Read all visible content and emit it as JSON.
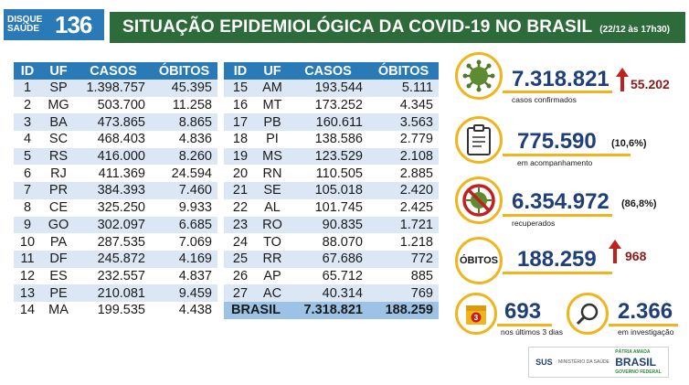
{
  "header": {
    "logo_top": "DISQUE",
    "logo_bottom": "SAÚDE",
    "logo_number": "136",
    "title": "SITUAÇÃO EPIDEMIOLÓGICA DA COVID-19 NO BRASIL",
    "date": "(22/12 às 17h30)"
  },
  "table": {
    "columns": [
      "ID",
      "UF",
      "CASOS",
      "ÓBITOS"
    ],
    "left": [
      [
        "1",
        "SP",
        "1.398.757",
        "45.395"
      ],
      [
        "2",
        "MG",
        "503.700",
        "11.258"
      ],
      [
        "3",
        "BA",
        "473.865",
        "8.865"
      ],
      [
        "4",
        "SC",
        "468.403",
        "4.836"
      ],
      [
        "5",
        "RS",
        "416.000",
        "8.260"
      ],
      [
        "6",
        "RJ",
        "411.369",
        "24.594"
      ],
      [
        "7",
        "PR",
        "384.393",
        "7.460"
      ],
      [
        "8",
        "CE",
        "325.250",
        "9.933"
      ],
      [
        "9",
        "GO",
        "302.097",
        "6.685"
      ],
      [
        "10",
        "PA",
        "287.535",
        "7.069"
      ],
      [
        "11",
        "DF",
        "245.872",
        "4.169"
      ],
      [
        "12",
        "ES",
        "232.557",
        "4.837"
      ],
      [
        "13",
        "PE",
        "210.081",
        "9.459"
      ],
      [
        "14",
        "MA",
        "199.535",
        "4.438"
      ]
    ],
    "right": [
      [
        "15",
        "AM",
        "193.544",
        "5.111"
      ],
      [
        "16",
        "MT",
        "173.252",
        "4.345"
      ],
      [
        "17",
        "PB",
        "160.611",
        "3.563"
      ],
      [
        "18",
        "PI",
        "138.586",
        "2.779"
      ],
      [
        "19",
        "MS",
        "123.529",
        "2.108"
      ],
      [
        "20",
        "RN",
        "110.505",
        "2.885"
      ],
      [
        "21",
        "SE",
        "105.018",
        "2.420"
      ],
      [
        "22",
        "AL",
        "101.745",
        "2.425"
      ],
      [
        "23",
        "RO",
        "90.835",
        "1.721"
      ],
      [
        "24",
        "TO",
        "88.070",
        "1.218"
      ],
      [
        "25",
        "RR",
        "67.686",
        "772"
      ],
      [
        "26",
        "AP",
        "65.712",
        "885"
      ],
      [
        "27",
        "AC",
        "40.314",
        "769"
      ]
    ],
    "total_label": "BRASIL",
    "total_cases": "7.318.821",
    "total_deaths": "188.259"
  },
  "stats": {
    "confirmed": "7.318.821",
    "confirmed_new": "55.202",
    "confirmed_label": "casos confirmados",
    "monitoring": "775.590",
    "monitoring_pct": "(10,6%)",
    "monitoring_label": "em acompanhamento",
    "recovered": "6.354.972",
    "recovered_pct": "(86,8%)",
    "recovered_label": "recuperados",
    "deaths_label": "ÓBITOS",
    "deaths": "188.259",
    "deaths_new": "968",
    "last3": "693",
    "last3_label": "nos últimos 3 dias",
    "investigation": "2.366",
    "investigation_label": "em investigação",
    "calendar_day": "3"
  },
  "footer": {
    "sus": "SUS",
    "ministry": "MINISTÉRIO DA SAÚDE",
    "gov_top": "PÁTRIA AMADA",
    "gov_main": "BRASIL",
    "gov_sub": "GOVERNO FEDERAL"
  },
  "colors": {
    "header_green": "#2e6b3a",
    "table_blue": "#2a7ab8",
    "accent_yellow": "#f0b41c",
    "number_blue": "#1f3f79",
    "up_red": "#8b1a1a"
  },
  "icons": [
    "virus-icon",
    "clipboard-icon",
    "crossed-virus-icon",
    "calendar-icon",
    "magnifier-icon",
    "up-arrow-icon"
  ]
}
